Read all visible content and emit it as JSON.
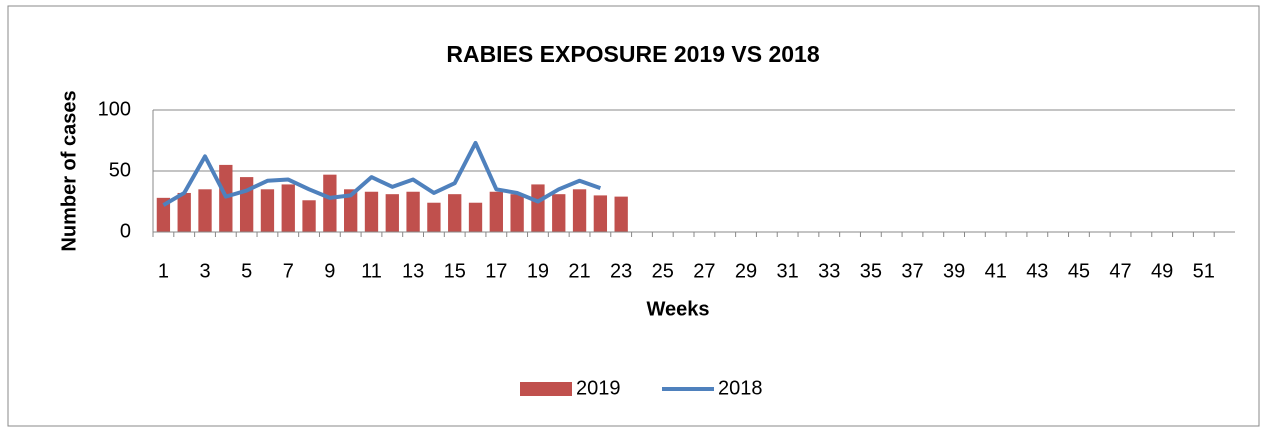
{
  "chart_data": {
    "type": "bar_line",
    "title": "RABIES EXPOSURE 2019 VS 2018",
    "x_label": "Weeks",
    "y_label": "Number of cases",
    "categories": [
      1,
      null,
      3,
      null,
      5,
      null,
      7,
      null,
      9,
      null,
      11,
      null,
      13,
      null,
      15,
      null,
      17,
      null,
      19,
      null,
      21,
      null,
      23,
      null,
      25,
      null,
      27,
      null,
      29,
      null,
      31,
      null,
      33,
      null,
      35,
      null,
      37,
      null,
      39,
      null,
      41,
      null,
      43,
      null,
      45,
      null,
      47,
      null,
      49,
      null,
      51,
      null
    ],
    "series": [
      {
        "name": "2019",
        "type": "bar",
        "color": "#c0504d",
        "values": [
          28,
          32,
          35,
          55,
          45,
          35,
          39,
          26,
          47,
          35,
          33,
          31,
          33,
          24,
          31,
          24,
          33,
          31,
          39,
          31,
          35,
          30,
          29,
          null,
          null,
          null,
          null,
          null,
          null,
          null,
          null,
          null,
          null,
          null,
          null,
          null,
          null,
          null,
          null,
          null,
          null,
          null,
          null,
          null,
          null,
          null,
          null,
          null,
          null,
          null,
          null,
          null
        ]
      },
      {
        "name": "2018",
        "type": "line",
        "color": "#4f81bd",
        "values": [
          22,
          32,
          62,
          29,
          34,
          42,
          43,
          35,
          28,
          30,
          45,
          37,
          43,
          32,
          40,
          73,
          35,
          32,
          25,
          35,
          42,
          36,
          null,
          null,
          null,
          null,
          null,
          null,
          null,
          null,
          null,
          null,
          null,
          null,
          null,
          null,
          null,
          null,
          null,
          null,
          null,
          null,
          null,
          null,
          null,
          null,
          null,
          null,
          null,
          null,
          null,
          null
        ]
      }
    ],
    "ylim": [
      0,
      100
    ],
    "yticks": [
      0,
      50,
      100
    ],
    "grid": true,
    "legend": "bottom"
  }
}
